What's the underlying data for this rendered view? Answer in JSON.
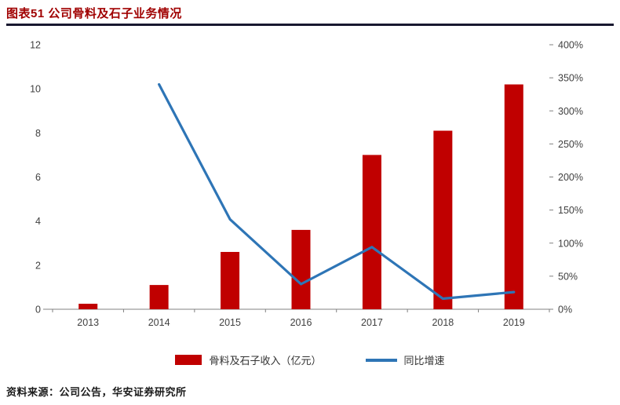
{
  "header": {
    "title": "图表51  公司骨料及石子业务情况",
    "title_color": "#A00000",
    "rule_color": "#181830"
  },
  "chart_data": {
    "type": "combo",
    "title": "公司骨料及石子业务情况",
    "categories": [
      "2013",
      "2014",
      "2015",
      "2016",
      "2017",
      "2018",
      "2019"
    ],
    "series": [
      {
        "name": "骨料及石子收入（亿元）",
        "type": "bar",
        "axis": "left",
        "color": "#C00000",
        "values": [
          0.25,
          1.1,
          2.6,
          3.6,
          7.0,
          8.1,
          10.2
        ]
      },
      {
        "name": "同比增速",
        "type": "line",
        "axis": "right",
        "color": "#2E75B6",
        "values": [
          null,
          340,
          136,
          38,
          94,
          16,
          26
        ]
      }
    ],
    "left_axis": {
      "min": 0,
      "max": 12,
      "ticks": [
        0,
        2,
        4,
        6,
        8,
        10,
        12
      ]
    },
    "right_axis": {
      "min": 0,
      "max": 400,
      "tick_labels": [
        "0%",
        "50%",
        "100%",
        "150%",
        "200%",
        "250%",
        "300%",
        "350%",
        "400%"
      ],
      "tick_values": [
        0,
        50,
        100,
        150,
        200,
        250,
        300,
        350,
        400
      ]
    },
    "grid": false,
    "legend_position": "bottom",
    "axis_text_color": "#404040",
    "axis_line_color": "#808080"
  },
  "footer": {
    "source": "资料来源：公司公告，华安证券研究所"
  }
}
